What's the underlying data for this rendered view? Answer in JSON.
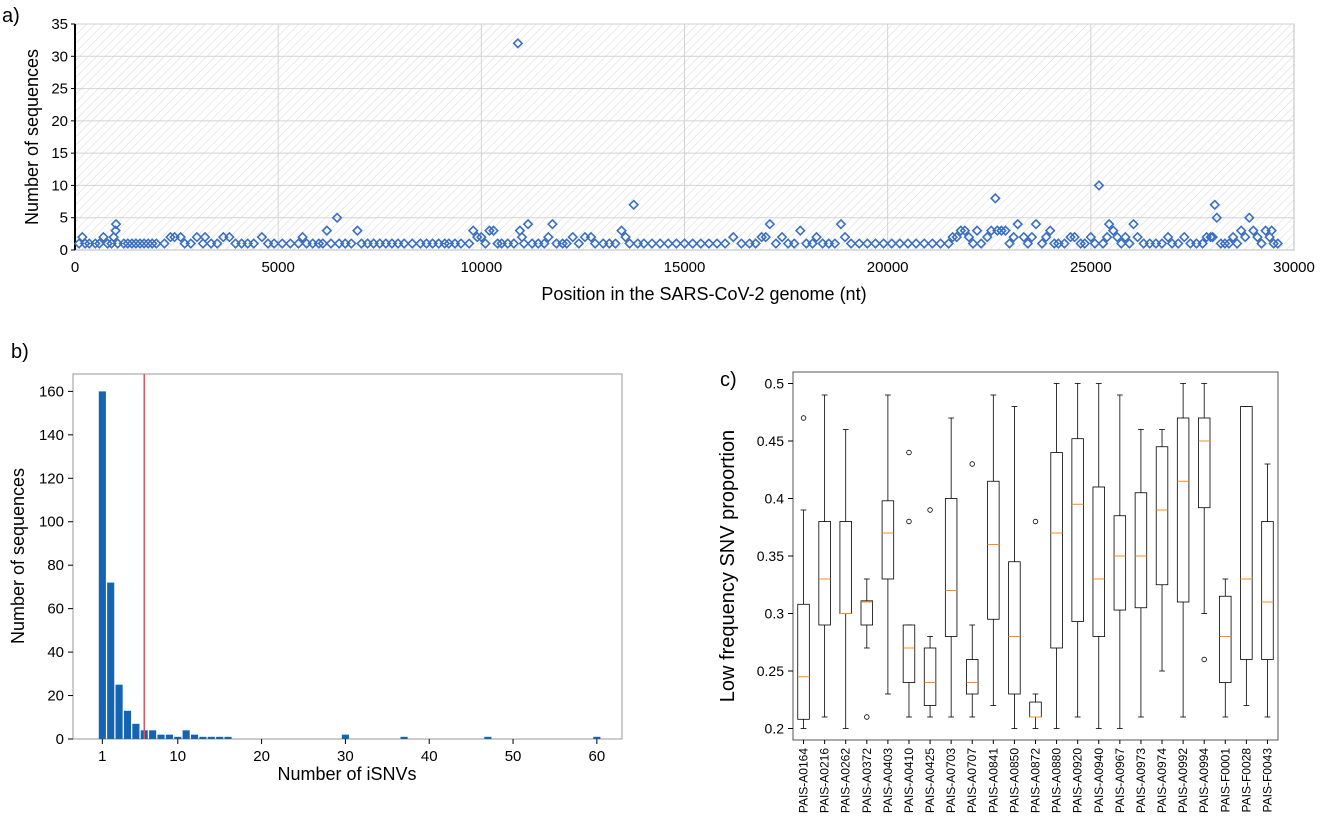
{
  "panels": {
    "a": "a)",
    "b": "b)",
    "c": "c)"
  },
  "chart_data": [
    {
      "id": "a",
      "type": "scatter",
      "title": "",
      "xlabel": "Position in the SARS-CoV-2 genome (nt)",
      "ylabel": "Number of sequences",
      "xlim": [
        0,
        30000
      ],
      "ylim": [
        0,
        35
      ],
      "xticks": [
        0,
        5000,
        10000,
        15000,
        20000,
        25000,
        30000
      ],
      "yticks": [
        0,
        5,
        10,
        15,
        20,
        25,
        30,
        35
      ],
      "grid": true,
      "marker": "diamond-open",
      "color": "#3a6fc4",
      "points": [
        [
          100,
          1
        ],
        [
          180,
          2
        ],
        [
          250,
          1
        ],
        [
          350,
          1
        ],
        [
          500,
          1
        ],
        [
          600,
          1
        ],
        [
          700,
          2
        ],
        [
          800,
          1
        ],
        [
          900,
          1
        ],
        [
          950,
          2
        ],
        [
          1000,
          3
        ],
        [
          1010,
          4
        ],
        [
          1050,
          1
        ],
        [
          1200,
          1
        ],
        [
          1300,
          1
        ],
        [
          1400,
          1
        ],
        [
          1500,
          1
        ],
        [
          1600,
          1
        ],
        [
          1700,
          1
        ],
        [
          1800,
          1
        ],
        [
          1900,
          1
        ],
        [
          2000,
          1
        ],
        [
          2200,
          1
        ],
        [
          2350,
          2
        ],
        [
          2450,
          2
        ],
        [
          2600,
          2
        ],
        [
          2700,
          1
        ],
        [
          2850,
          1
        ],
        [
          3000,
          2
        ],
        [
          3150,
          1
        ],
        [
          3200,
          2
        ],
        [
          3350,
          1
        ],
        [
          3500,
          1
        ],
        [
          3650,
          2
        ],
        [
          3800,
          2
        ],
        [
          3950,
          1
        ],
        [
          4100,
          1
        ],
        [
          4250,
          1
        ],
        [
          4400,
          1
        ],
        [
          4600,
          2
        ],
        [
          4750,
          1
        ],
        [
          4900,
          1
        ],
        [
          5100,
          1
        ],
        [
          5300,
          1
        ],
        [
          5500,
          1
        ],
        [
          5600,
          2
        ],
        [
          5700,
          1
        ],
        [
          5850,
          1
        ],
        [
          6000,
          1
        ],
        [
          6100,
          1
        ],
        [
          6200,
          3
        ],
        [
          6300,
          1
        ],
        [
          6450,
          5
        ],
        [
          6500,
          1
        ],
        [
          6650,
          1
        ],
        [
          6800,
          1
        ],
        [
          6950,
          3
        ],
        [
          7050,
          1
        ],
        [
          7200,
          1
        ],
        [
          7350,
          1
        ],
        [
          7500,
          1
        ],
        [
          7650,
          1
        ],
        [
          7800,
          1
        ],
        [
          7950,
          1
        ],
        [
          8100,
          1
        ],
        [
          8300,
          1
        ],
        [
          8500,
          1
        ],
        [
          8650,
          1
        ],
        [
          8800,
          1
        ],
        [
          8950,
          1
        ],
        [
          9100,
          1
        ],
        [
          9200,
          1
        ],
        [
          9350,
          1
        ],
        [
          9500,
          1
        ],
        [
          9700,
          1
        ],
        [
          9800,
          3
        ],
        [
          9900,
          2
        ],
        [
          10000,
          2
        ],
        [
          10100,
          1
        ],
        [
          10200,
          3
        ],
        [
          10300,
          3
        ],
        [
          10400,
          1
        ],
        [
          10500,
          1
        ],
        [
          10650,
          1
        ],
        [
          10800,
          1
        ],
        [
          10900,
          32
        ],
        [
          10950,
          3
        ],
        [
          11000,
          2
        ],
        [
          11050,
          1
        ],
        [
          11150,
          4
        ],
        [
          11250,
          1
        ],
        [
          11400,
          1
        ],
        [
          11550,
          1
        ],
        [
          11650,
          2
        ],
        [
          11750,
          4
        ],
        [
          11850,
          1
        ],
        [
          12000,
          1
        ],
        [
          12100,
          1
        ],
        [
          12250,
          2
        ],
        [
          12400,
          1
        ],
        [
          12550,
          2
        ],
        [
          12700,
          2
        ],
        [
          12800,
          1
        ],
        [
          13000,
          1
        ],
        [
          13150,
          1
        ],
        [
          13300,
          1
        ],
        [
          13450,
          3
        ],
        [
          13550,
          2
        ],
        [
          13650,
          1
        ],
        [
          13750,
          7
        ],
        [
          13850,
          1
        ],
        [
          14000,
          1
        ],
        [
          14200,
          1
        ],
        [
          14400,
          1
        ],
        [
          14600,
          1
        ],
        [
          14800,
          1
        ],
        [
          15000,
          1
        ],
        [
          15200,
          1
        ],
        [
          15400,
          1
        ],
        [
          15600,
          1
        ],
        [
          15800,
          1
        ],
        [
          16000,
          1
        ],
        [
          16200,
          2
        ],
        [
          16400,
          1
        ],
        [
          16600,
          1
        ],
        [
          16750,
          1
        ],
        [
          16900,
          2
        ],
        [
          17000,
          2
        ],
        [
          17100,
          4
        ],
        [
          17250,
          1
        ],
        [
          17400,
          2
        ],
        [
          17550,
          1
        ],
        [
          17700,
          1
        ],
        [
          17850,
          3
        ],
        [
          18000,
          1
        ],
        [
          18150,
          1
        ],
        [
          18250,
          2
        ],
        [
          18400,
          1
        ],
        [
          18550,
          1
        ],
        [
          18700,
          1
        ],
        [
          18850,
          4
        ],
        [
          18950,
          2
        ],
        [
          19100,
          1
        ],
        [
          19300,
          1
        ],
        [
          19500,
          1
        ],
        [
          19700,
          1
        ],
        [
          19900,
          1
        ],
        [
          20100,
          1
        ],
        [
          20300,
          1
        ],
        [
          20500,
          1
        ],
        [
          20700,
          1
        ],
        [
          20900,
          1
        ],
        [
          21100,
          1
        ],
        [
          21300,
          1
        ],
        [
          21500,
          1
        ],
        [
          21600,
          2
        ],
        [
          21700,
          2
        ],
        [
          21800,
          3
        ],
        [
          21900,
          3
        ],
        [
          22000,
          2
        ],
        [
          22100,
          1
        ],
        [
          22200,
          3
        ],
        [
          22300,
          1
        ],
        [
          22450,
          2
        ],
        [
          22550,
          3
        ],
        [
          22650,
          8
        ],
        [
          22700,
          3
        ],
        [
          22800,
          3
        ],
        [
          22900,
          3
        ],
        [
          23000,
          1
        ],
        [
          23100,
          2
        ],
        [
          23200,
          4
        ],
        [
          23350,
          2
        ],
        [
          23450,
          1
        ],
        [
          23550,
          2
        ],
        [
          23650,
          4
        ],
        [
          23800,
          1
        ],
        [
          23900,
          2
        ],
        [
          24000,
          3
        ],
        [
          24100,
          1
        ],
        [
          24200,
          1
        ],
        [
          24350,
          1
        ],
        [
          24500,
          2
        ],
        [
          24600,
          2
        ],
        [
          24750,
          1
        ],
        [
          24850,
          1
        ],
        [
          25000,
          2
        ],
        [
          25100,
          1
        ],
        [
          25200,
          10
        ],
        [
          25300,
          1
        ],
        [
          25400,
          2
        ],
        [
          25450,
          4
        ],
        [
          25550,
          3
        ],
        [
          25650,
          2
        ],
        [
          25750,
          1
        ],
        [
          25850,
          2
        ],
        [
          25950,
          1
        ],
        [
          26050,
          4
        ],
        [
          26150,
          2
        ],
        [
          26300,
          1
        ],
        [
          26450,
          1
        ],
        [
          26600,
          1
        ],
        [
          26750,
          1
        ],
        [
          26900,
          2
        ],
        [
          27000,
          1
        ],
        [
          27150,
          1
        ],
        [
          27300,
          2
        ],
        [
          27450,
          1
        ],
        [
          27600,
          1
        ],
        [
          27750,
          1
        ],
        [
          27850,
          2
        ],
        [
          27950,
          2
        ],
        [
          28000,
          2
        ],
        [
          28050,
          7
        ],
        [
          28100,
          5
        ],
        [
          28200,
          1
        ],
        [
          28300,
          1
        ],
        [
          28400,
          1
        ],
        [
          28500,
          2
        ],
        [
          28600,
          1
        ],
        [
          28700,
          3
        ],
        [
          28800,
          2
        ],
        [
          28900,
          5
        ],
        [
          29000,
          3
        ],
        [
          29100,
          2
        ],
        [
          29200,
          1
        ],
        [
          29300,
          3
        ],
        [
          29400,
          2
        ],
        [
          29450,
          3
        ],
        [
          29500,
          1
        ],
        [
          29600,
          1
        ]
      ]
    },
    {
      "id": "b",
      "type": "bar",
      "title": "",
      "xlabel": "Number of iSNVs",
      "ylabel": "Number of sequences",
      "xlim": [
        -2.5,
        63
      ],
      "ylim": [
        0,
        168
      ],
      "xticks": [
        1,
        10,
        20,
        30,
        40,
        50,
        60
      ],
      "yticks": [
        0,
        20,
        40,
        60,
        80,
        100,
        120,
        140,
        160
      ],
      "color": "#1464b4",
      "threshold_line": {
        "x": 6,
        "color": "#e0505a"
      },
      "bars": [
        [
          1,
          160
        ],
        [
          2,
          72
        ],
        [
          3,
          25
        ],
        [
          4,
          13
        ],
        [
          5,
          7
        ],
        [
          6,
          4
        ],
        [
          7,
          4
        ],
        [
          8,
          2
        ],
        [
          9,
          2
        ],
        [
          10,
          1
        ],
        [
          11,
          4
        ],
        [
          12,
          2
        ],
        [
          13,
          1
        ],
        [
          14,
          1
        ],
        [
          15,
          1
        ],
        [
          16,
          1
        ],
        [
          30,
          2
        ],
        [
          37,
          1
        ],
        [
          47,
          1
        ],
        [
          60,
          1
        ]
      ]
    },
    {
      "id": "c",
      "type": "box",
      "title": "",
      "xlabel": "",
      "ylabel": "Low frequency SNV proportion",
      "ylim": [
        0.19,
        0.51
      ],
      "yticks": [
        0.2,
        0.25,
        0.3,
        0.35,
        0.4,
        0.45,
        0.5
      ],
      "median_color": "#ff8c1a",
      "boxes": [
        {
          "label": "PAIS-A0164",
          "whislo": 0.2,
          "q1": 0.208,
          "med": 0.245,
          "q3": 0.308,
          "whishi": 0.39,
          "fliers": [
            0.47
          ]
        },
        {
          "label": "PAIS-A0216",
          "whislo": 0.21,
          "q1": 0.29,
          "med": 0.33,
          "q3": 0.38,
          "whishi": 0.49,
          "fliers": []
        },
        {
          "label": "PAIS-A0262",
          "whislo": 0.2,
          "q1": 0.3,
          "med": 0.3,
          "q3": 0.38,
          "whishi": 0.46,
          "fliers": []
        },
        {
          "label": "PAIS-A0372",
          "whislo": 0.27,
          "q1": 0.29,
          "med": 0.31,
          "q3": 0.311,
          "whishi": 0.33,
          "fliers": [
            0.21
          ]
        },
        {
          "label": "PAIS-A0403",
          "whislo": 0.23,
          "q1": 0.33,
          "med": 0.37,
          "q3": 0.398,
          "whishi": 0.49,
          "fliers": []
        },
        {
          "label": "PAIS-A0410",
          "whislo": 0.21,
          "q1": 0.24,
          "med": 0.27,
          "q3": 0.29,
          "whishi": 0.29,
          "fliers": [
            0.38,
            0.44
          ]
        },
        {
          "label": "PAIS-A0425",
          "whislo": 0.21,
          "q1": 0.22,
          "med": 0.24,
          "q3": 0.27,
          "whishi": 0.28,
          "fliers": [
            0.39
          ]
        },
        {
          "label": "PAIS-A0703",
          "whislo": 0.21,
          "q1": 0.28,
          "med": 0.32,
          "q3": 0.4,
          "whishi": 0.47,
          "fliers": []
        },
        {
          "label": "PAIS-A0707",
          "whislo": 0.21,
          "q1": 0.23,
          "med": 0.24,
          "q3": 0.26,
          "whishi": 0.29,
          "fliers": [
            0.43
          ]
        },
        {
          "label": "PAIS-A0841",
          "whislo": 0.22,
          "q1": 0.295,
          "med": 0.36,
          "q3": 0.415,
          "whishi": 0.49,
          "fliers": []
        },
        {
          "label": "PAIS-A0850",
          "whislo": 0.2,
          "q1": 0.23,
          "med": 0.28,
          "q3": 0.345,
          "whishi": 0.48,
          "fliers": []
        },
        {
          "label": "PAIS-A0872",
          "whislo": 0.2,
          "q1": 0.21,
          "med": 0.21,
          "q3": 0.223,
          "whishi": 0.23,
          "fliers": [
            0.38
          ]
        },
        {
          "label": "PAIS-A0880",
          "whislo": 0.2,
          "q1": 0.27,
          "med": 0.37,
          "q3": 0.44,
          "whishi": 0.5,
          "fliers": []
        },
        {
          "label": "PAIS-A0920",
          "whislo": 0.21,
          "q1": 0.293,
          "med": 0.395,
          "q3": 0.452,
          "whishi": 0.5,
          "fliers": []
        },
        {
          "label": "PAIS-A0940",
          "whislo": 0.2,
          "q1": 0.28,
          "med": 0.33,
          "q3": 0.41,
          "whishi": 0.5,
          "fliers": []
        },
        {
          "label": "PAIS-A0967",
          "whislo": 0.2,
          "q1": 0.303,
          "med": 0.35,
          "q3": 0.385,
          "whishi": 0.49,
          "fliers": []
        },
        {
          "label": "PAIS-A0973",
          "whislo": 0.21,
          "q1": 0.305,
          "med": 0.35,
          "q3": 0.405,
          "whishi": 0.46,
          "fliers": []
        },
        {
          "label": "PAIS-A0974",
          "whislo": 0.25,
          "q1": 0.325,
          "med": 0.39,
          "q3": 0.445,
          "whishi": 0.46,
          "fliers": []
        },
        {
          "label": "PAIS-A0992",
          "whislo": 0.21,
          "q1": 0.31,
          "med": 0.415,
          "q3": 0.47,
          "whishi": 0.5,
          "fliers": []
        },
        {
          "label": "PAIS-A0994",
          "whislo": 0.3,
          "q1": 0.392,
          "med": 0.45,
          "q3": 0.47,
          "whishi": 0.5,
          "fliers": [
            0.26
          ]
        },
        {
          "label": "PAIS-F0001",
          "whislo": 0.21,
          "q1": 0.24,
          "med": 0.28,
          "q3": 0.315,
          "whishi": 0.33,
          "fliers": []
        },
        {
          "label": "PAIS-F0028",
          "whislo": 0.22,
          "q1": 0.26,
          "med": 0.33,
          "q3": 0.48,
          "whishi": 0.48,
          "fliers": []
        },
        {
          "label": "PAIS-F0043",
          "whislo": 0.21,
          "q1": 0.26,
          "med": 0.31,
          "q3": 0.38,
          "whishi": 0.43,
          "fliers": []
        }
      ]
    }
  ]
}
